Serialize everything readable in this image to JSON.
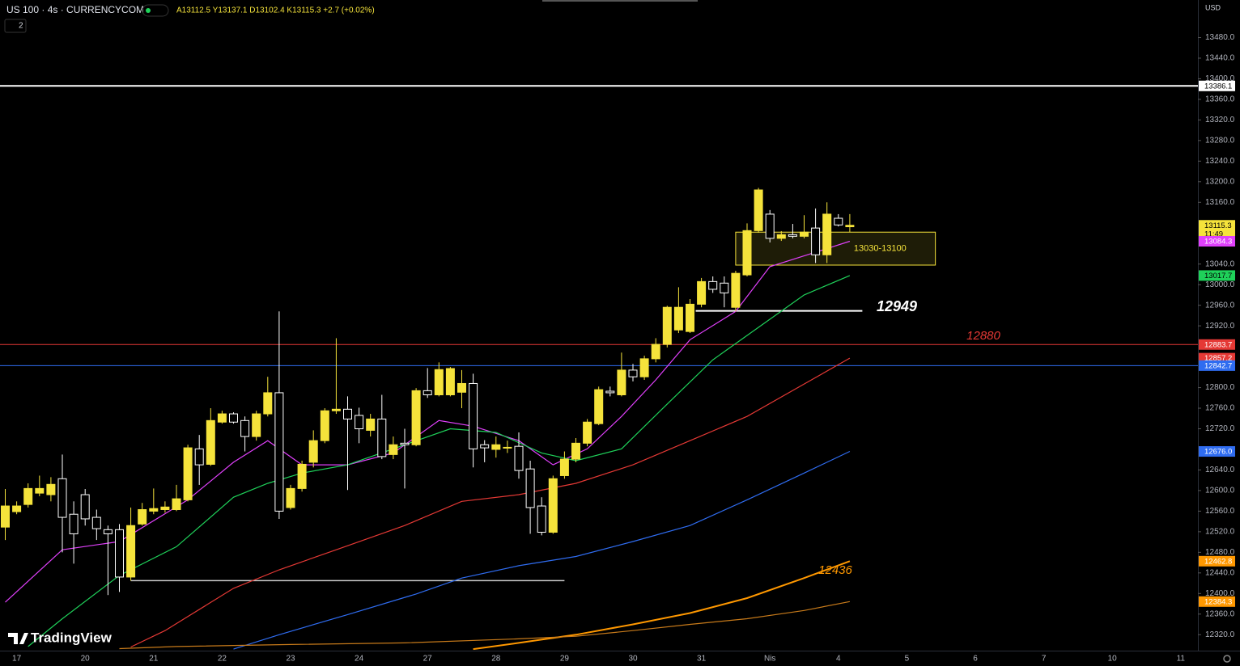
{
  "ui": {
    "title": "US 100 · 4s · CURRENCYCOM",
    "ohlc_text": "A13112.5 Y13137.1 D13102.4 K13115.3 +2.7 (+0.02%)",
    "indicator_count": "2",
    "currency": "USD",
    "logo": "TradingView",
    "countdown": "11:49"
  },
  "chart_data": {
    "type": "candlestick",
    "categories": [
      null,
      "17",
      null,
      null,
      null,
      null,
      null,
      "20",
      null,
      null,
      null,
      null,
      null,
      "21",
      null,
      null,
      null,
      null,
      null,
      "22",
      null,
      null,
      null,
      null,
      null,
      "23",
      null,
      null,
      null,
      null,
      null,
      "24",
      null,
      null,
      null,
      null,
      null,
      "27",
      null,
      null,
      null,
      null,
      null,
      "28",
      null,
      null,
      null,
      null,
      null,
      "29",
      null,
      null,
      null,
      null,
      null,
      "30",
      null,
      null,
      null,
      null,
      null,
      "31",
      null,
      null,
      null,
      null,
      null,
      "Nis",
      null,
      null,
      null,
      null,
      null,
      "4",
      null,
      null,
      null,
      null,
      null,
      "5",
      null,
      null,
      null,
      null,
      null,
      "6",
      null,
      null,
      null,
      null,
      null,
      "7",
      null,
      null,
      null,
      null,
      null,
      "10",
      null,
      null,
      null,
      null,
      null,
      "11",
      null
    ],
    "open": [
      12529,
      12559,
      12573,
      12595,
      12592,
      12623,
      12554,
      12592,
      12548,
      12524,
      12524,
      12432,
      12535,
      12560,
      12563,
      12563,
      12582,
      12681,
      12651,
      12733,
      12749,
      12736,
      12705,
      12749,
      12790,
      12567,
      12604,
      12655,
      12697,
      12755,
      12758,
      12746,
      12717,
      12739,
      12670,
      12692,
      12689,
      12794,
      12786,
      12786,
      12791,
      12808,
      12689,
      12680,
      12683,
      12686,
      12642,
      12570,
      12519,
      12629,
      12661,
      12692,
      12730,
      12793,
      12786,
      12834,
      12821,
      12856,
      12884,
      12912,
      12909,
      12962,
      13006,
      13003,
      12956,
      13019,
      13105,
      13137,
      13090,
      13097,
      13094,
      13110,
      13058,
      13129,
      13112.5,
      null,
      null,
      null,
      null,
      null,
      null,
      null,
      null,
      null,
      null,
      null,
      null,
      null,
      null,
      null,
      null,
      null,
      null,
      null,
      null,
      null,
      null,
      null,
      null,
      null,
      null,
      null,
      null,
      null,
      null
    ],
    "high": [
      12603,
      12579,
      12614,
      12629,
      12626,
      12670,
      12579,
      12603,
      12563,
      12532,
      12535,
      12567,
      12576,
      12604,
      12579,
      12611,
      12689,
      12708,
      12760,
      12755,
      12752,
      12744,
      12755,
      12821,
      12948,
      12611,
      12658,
      12717,
      12760,
      12896,
      12783,
      12761,
      12749,
      12786,
      12705,
      12720,
      12799,
      12838,
      12849,
      12840,
      12834,
      12827,
      12698,
      12705,
      12697,
      12713,
      12658,
      12587,
      12629,
      12676,
      12702,
      12739,
      12802,
      12802,
      12868,
      12846,
      12862,
      12896,
      12959,
      12995,
      12972,
      13013,
      13016,
      13016,
      13027,
      13119,
      13188,
      13145,
      13104,
      13118,
      13135,
      13148,
      13160,
      13137,
      13137.1,
      null,
      null,
      null,
      null,
      null,
      null,
      null,
      null,
      null,
      null,
      null,
      null,
      null,
      null,
      null,
      null,
      null,
      null,
      null,
      null,
      null,
      null,
      null,
      null,
      null,
      null,
      null,
      null,
      null,
      null
    ],
    "low": [
      12504,
      12554,
      12567,
      12589,
      12579,
      12480,
      12458,
      12532,
      12504,
      12397,
      12403,
      12425,
      12532,
      12554,
      12557,
      12560,
      12579,
      12611,
      12648,
      12730,
      12730,
      12676,
      12697,
      12744,
      12545,
      12563,
      12598,
      12645,
      12692,
      12749,
      12601,
      12692,
      12705,
      12661,
      12661,
      12604,
      12686,
      12780,
      12783,
      12783,
      12760,
      12645,
      12655,
      12664,
      12673,
      12623,
      12516,
      12513,
      12516,
      12623,
      12655,
      12686,
      12727,
      12783,
      12783,
      12812,
      12815,
      12849,
      12878,
      12906,
      12906,
      12956,
      12984,
      12956,
      12948,
      13016,
      13101,
      13082,
      13085,
      13090,
      13090,
      13042,
      13042,
      13113,
      13102.4,
      null,
      null,
      null,
      null,
      null,
      null,
      null,
      null,
      null,
      null,
      null,
      null,
      null,
      null,
      null,
      null,
      null,
      null,
      null,
      null,
      null,
      null,
      null,
      null,
      null,
      null,
      null,
      null,
      null,
      null
    ],
    "close": [
      12570,
      12570,
      12604,
      12604,
      12612,
      12548,
      12516,
      12545,
      12526,
      12516,
      12432,
      12532,
      12563,
      12565,
      12568,
      12584,
      12683,
      12650,
      12736,
      12749,
      12733,
      12705,
      12749,
      12790,
      12560,
      12604,
      12651,
      12697,
      12755,
      12758,
      12739,
      12720,
      12739,
      12666,
      12689,
      12689,
      12794,
      12786,
      12835,
      12837,
      12808,
      12681,
      12683,
      12689,
      12684,
      12639,
      12567,
      12519,
      12623,
      12661,
      12692,
      12733,
      12796,
      12790,
      12834,
      12821,
      12856,
      12884,
      12956,
      12956,
      12962,
      13006,
      12991,
      12984,
      13022,
      13105,
      13184,
      13090,
      13097,
      13094,
      13102,
      13058,
      13137,
      13116,
      13115.3,
      null,
      null,
      null,
      null,
      null,
      null,
      null,
      null,
      null,
      null,
      null,
      null,
      null,
      null,
      null,
      null,
      null,
      null,
      null,
      null,
      null,
      null,
      null,
      null,
      null,
      null,
      null,
      null,
      null,
      null
    ],
    "up_color": "#f5e33b",
    "down_color": "#ffffff",
    "ylim": [
      12289,
      13553
    ],
    "yticks": [
      {
        "value": 13480,
        "label": "13480.0"
      },
      {
        "value": 13440,
        "label": "13440.0"
      },
      {
        "value": 13400,
        "label": "13400.0"
      },
      {
        "value": 13360,
        "label": "13360.0"
      },
      {
        "value": 13320,
        "label": "13320.0"
      },
      {
        "value": 13280,
        "label": "13280.0"
      },
      {
        "value": 13240,
        "label": "13240.0"
      },
      {
        "value": 13200,
        "label": "13200.0"
      },
      {
        "value": 13160,
        "label": "13160.0"
      },
      {
        "value": 13040,
        "label": "13040.0"
      },
      {
        "value": 13000,
        "label": "13000.0"
      },
      {
        "value": 12960,
        "label": "12960.0"
      },
      {
        "value": 12920,
        "label": "12920.0"
      },
      {
        "value": 12800,
        "label": "12800.0"
      },
      {
        "value": 12760,
        "label": "12760.0"
      },
      {
        "value": 12720,
        "label": "12720.0"
      },
      {
        "value": 12640,
        "label": "12640.0"
      },
      {
        "value": 12600,
        "label": "12600.0"
      },
      {
        "value": 12560,
        "label": "12560.0"
      },
      {
        "value": 12520,
        "label": "12520.0"
      },
      {
        "value": 12480,
        "label": "12480.0"
      },
      {
        "value": 12440,
        "label": "12440.0"
      },
      {
        "value": 12400,
        "label": "12400.0"
      },
      {
        "value": 12360,
        "label": "12360.0"
      },
      {
        "value": 12320,
        "label": "12320.0"
      }
    ],
    "grid": false,
    "moving_averages": [
      {
        "color": "#e040fb",
        "x": [
          0,
          5,
          10,
          16,
          20,
          23,
          26,
          30,
          34,
          38,
          41,
          45,
          48,
          51,
          54,
          57,
          60,
          64,
          67,
          71,
          74
        ],
        "values": [
          12383,
          12485,
          12501,
          12582,
          12655,
          12697,
          12650,
          12650,
          12673,
          12736,
          12725,
          12697,
          12650,
          12681,
          12744,
          12815,
          12893,
          12948,
          13035,
          13063,
          13084.3
        ]
      },
      {
        "color": "#1fd15a",
        "x": [
          2,
          5,
          10,
          15,
          20,
          23,
          26,
          30,
          34,
          39,
          43,
          47,
          50,
          54,
          58,
          62,
          66,
          70,
          74
        ],
        "values": [
          12297,
          12351,
          12435,
          12491,
          12587,
          12614,
          12634,
          12650,
          12681,
          12720,
          12713,
          12673,
          12658,
          12681,
          12768,
          12854,
          12917,
          12980,
          13017.7
        ]
      },
      {
        "color": "#e53935",
        "x": [
          11,
          14,
          20,
          24,
          29,
          35,
          40,
          45,
          50,
          55,
          60,
          65,
          70,
          74
        ],
        "values": [
          12296,
          12328,
          12410,
          12446,
          12485,
          12532,
          12579,
          12592,
          12614,
          12650,
          12697,
          12744,
          12807,
          12857.2
        ]
      },
      {
        "color": "#2f6cf0",
        "x": [
          20,
          24,
          30,
          36,
          40,
          45,
          50,
          55,
          60,
          65,
          70,
          74
        ],
        "values": [
          12292,
          12320,
          12359,
          12399,
          12430,
          12454,
          12472,
          12501,
          12532,
          12582,
          12634,
          12676.0
        ]
      },
      {
        "color": "#ff9800",
        "x": [
          41,
          45,
          50,
          55,
          60,
          65,
          70,
          74
        ],
        "values": [
          12292,
          12304,
          12320,
          12340,
          12362,
          12391,
          12430,
          12462.8
        ]
      },
      {
        "color": "#c77a1a",
        "x": [
          10,
          15,
          25,
          35,
          45,
          50,
          55,
          60,
          65,
          70,
          74
        ],
        "values": [
          12293,
          12297,
          12301,
          12304,
          12312,
          12317,
          12328,
          12340,
          12351,
          12367,
          12384.3
        ]
      }
    ],
    "horizontal_lines": [
      {
        "value": 13386.1,
        "color": "#ffffff"
      },
      {
        "value": 12883.7,
        "color": "#e53935"
      },
      {
        "value": 12842.7,
        "color": "#2f6cf0"
      }
    ],
    "segments": [
      {
        "value": 12949,
        "x": [
          60.5,
          75.1
        ],
        "color": "#ffffff"
      },
      {
        "value": 12425,
        "x": [
          11,
          49
        ],
        "color": "#cccccc"
      }
    ],
    "zone": {
      "label": "13030-13100",
      "top": 13102,
      "bottom": 13038,
      "x": [
        64,
        81.5
      ],
      "color": "#f5e33b"
    },
    "annotations": [
      {
        "text": "12949",
        "color": "#ffffff"
      },
      {
        "text": "12880",
        "color": "#e53935"
      },
      {
        "text": "12436",
        "color": "#ff9800"
      }
    ],
    "price_tags": [
      {
        "value": 13386.1,
        "color": "#ffffff"
      },
      {
        "value": 13115.3,
        "color": "#f5e33b"
      },
      {
        "value": 13084.3,
        "color": "#e040fb"
      },
      {
        "value": 13017.7,
        "color": "#1fd15a"
      },
      {
        "value": 12883.7,
        "color": "#e53935"
      },
      {
        "value": 12857.2,
        "color": "#e53935"
      },
      {
        "value": 12842.7,
        "color": "#2f6cf0"
      },
      {
        "value": 12676.0,
        "label": "12676.0",
        "color": "#2f6cf0"
      },
      {
        "value": 12462.8,
        "color": "#ff9800"
      },
      {
        "value": 12384.3,
        "color": "#ff9800"
      }
    ]
  }
}
